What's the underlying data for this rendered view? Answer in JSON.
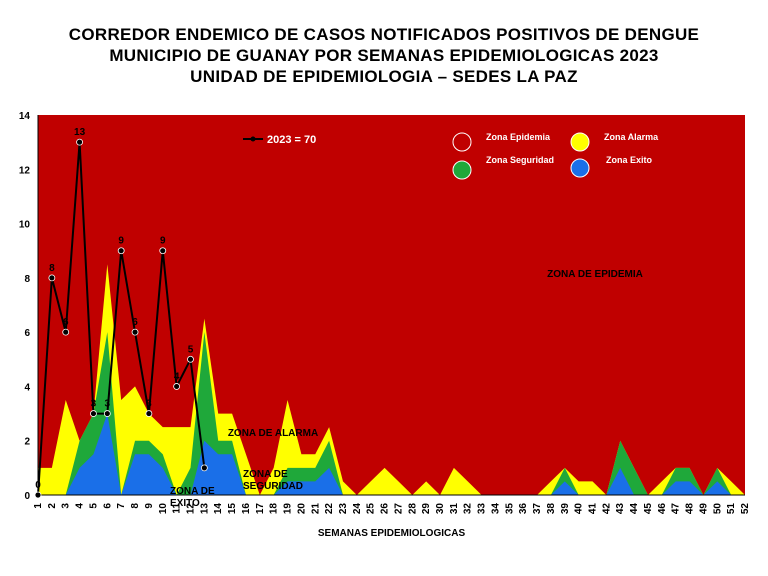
{
  "chart_data": {
    "type": "area",
    "title": [
      "CORREDOR ENDEMICO DE CASOS NOTIFICADOS POSITIVOS DE DENGUE",
      "MUNICIPIO DE GUANAY POR SEMANAS EPIDEMIOLOGICAS 2023",
      "UNIDAD DE EPIDEMIOLOGIA – SEDES LA PAZ"
    ],
    "xlabel": "SEMANAS EPIDEMIOLOGICAS",
    "ylabel": "",
    "ylim": [
      0,
      14
    ],
    "yticks": [
      0,
      2,
      4,
      6,
      8,
      10,
      12,
      14
    ],
    "x": [
      1,
      2,
      3,
      4,
      5,
      6,
      7,
      8,
      9,
      10,
      11,
      12,
      13,
      14,
      15,
      16,
      17,
      18,
      19,
      20,
      21,
      22,
      23,
      24,
      25,
      26,
      27,
      28,
      29,
      30,
      31,
      32,
      33,
      34,
      35,
      36,
      37,
      38,
      39,
      40,
      41,
      42,
      43,
      44,
      45,
      46,
      47,
      48,
      49,
      50,
      51,
      52
    ],
    "zones": [
      {
        "name": "Zona Exito",
        "color": "#1a6fe8",
        "values": [
          0,
          0,
          0,
          1,
          1.5,
          3,
          0,
          1.5,
          1.5,
          1,
          0,
          0,
          2,
          1.5,
          1.5,
          0,
          0,
          0,
          0.5,
          0.5,
          0.5,
          1,
          0,
          0,
          0,
          0,
          0,
          0,
          0,
          0,
          0,
          0,
          0,
          0,
          0,
          0,
          0,
          0,
          0.5,
          0,
          0,
          0,
          1,
          0,
          0,
          0,
          0.5,
          0.5,
          0,
          0.5,
          0,
          0
        ]
      },
      {
        "name": "Zona Seguridad",
        "color": "#1fa83a",
        "values": [
          0,
          0,
          0,
          2,
          3,
          6,
          0,
          2,
          2,
          1.5,
          0,
          1,
          6,
          2,
          2,
          0,
          0,
          0,
          1,
          1,
          1,
          2,
          0,
          0,
          0,
          0,
          0,
          0,
          0,
          0,
          0,
          0,
          0,
          0,
          0,
          0,
          0,
          0,
          1,
          0,
          0,
          0,
          2,
          1,
          0,
          0,
          1,
          1,
          0,
          1,
          0,
          0
        ]
      },
      {
        "name": "Zona Alarma",
        "color": "#ffff00",
        "values": [
          1,
          1,
          3.5,
          2,
          3,
          8.5,
          3.5,
          4,
          3,
          2.5,
          2.5,
          2.5,
          6.5,
          3,
          3,
          1.5,
          0,
          1,
          3.5,
          1.5,
          1.5,
          2.5,
          0.5,
          0,
          0.5,
          1,
          0.5,
          0,
          0.5,
          0,
          1,
          0.5,
          0,
          0,
          0,
          0,
          0,
          0.5,
          1,
          0.5,
          0.5,
          0,
          2,
          1,
          0,
          0.5,
          1,
          1,
          0,
          1,
          0.5,
          0
        ]
      },
      {
        "name": "Zona Epidemia",
        "color": "#c00000",
        "values": "fill to 14"
      }
    ],
    "series": [
      {
        "name": "2023 = 70",
        "color": "#000000",
        "x": [
          1,
          2,
          3,
          4,
          5,
          6,
          7,
          8,
          9,
          10,
          11,
          12,
          13
        ],
        "values": [
          0,
          8,
          6,
          13,
          3,
          3,
          9,
          6,
          3,
          9,
          4,
          5,
          1
        ],
        "labels": [
          "0",
          "8",
          "6",
          "13",
          "3",
          "3",
          "9",
          "6",
          "3",
          "9",
          "4",
          "5",
          ""
        ]
      }
    ],
    "legend": [
      "Zona Epidemia",
      "Zona Alarma",
      "Zona Seguridad",
      "Zona Exito"
    ],
    "legend_position": "top-right",
    "annotations": [
      "ZONA DE EPIDEMIA",
      "ZONA DE ALARMA",
      "ZONA DE SEGURIDAD",
      "ZONA DE EXITO"
    ],
    "grid": false
  }
}
